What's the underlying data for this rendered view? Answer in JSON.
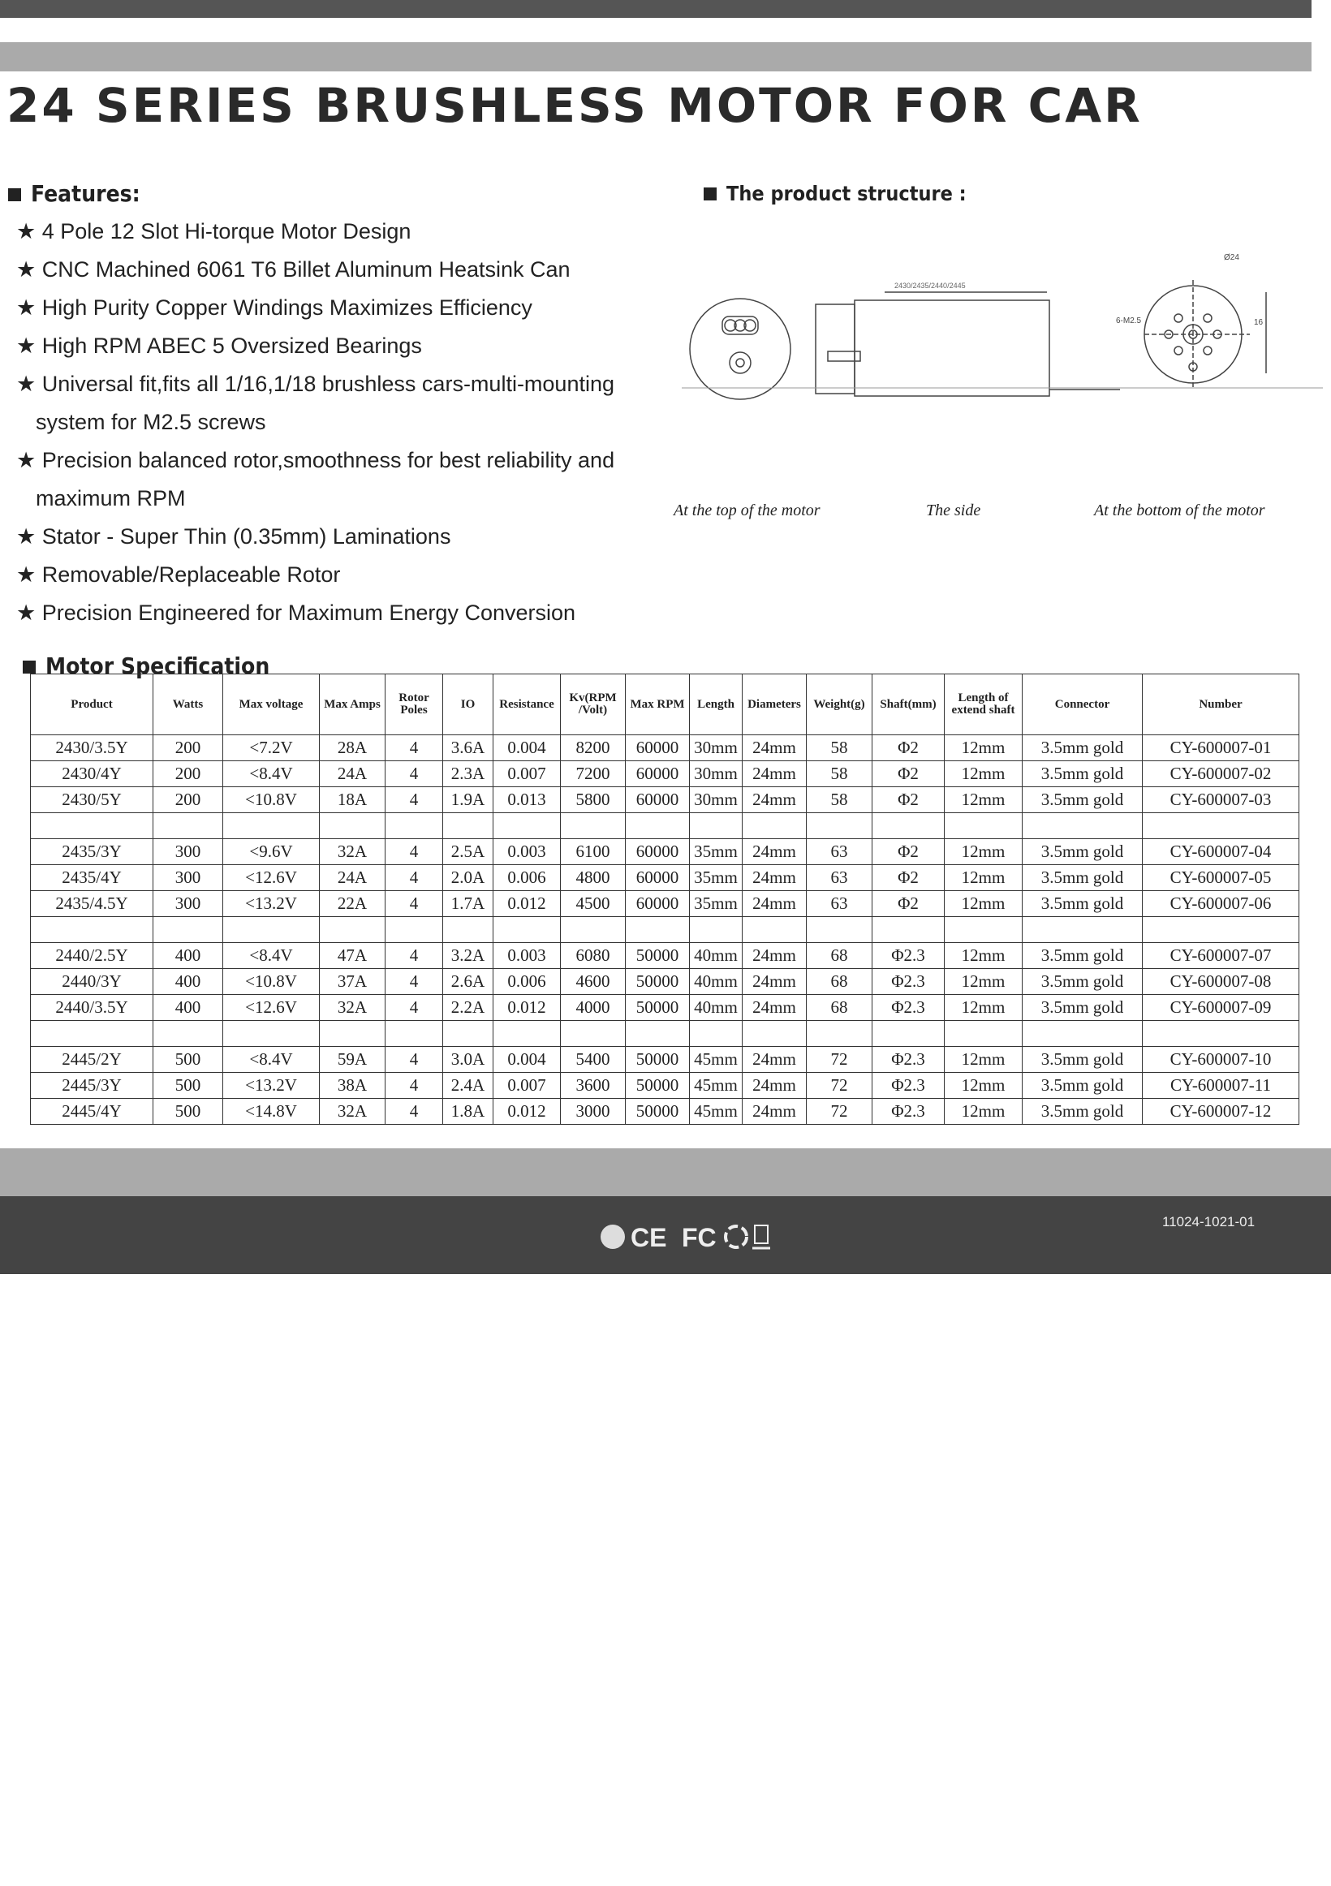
{
  "header": {
    "title": "24 SERIES BRUSHLESS MOTOR FOR CAR"
  },
  "features": {
    "heading": "Features:",
    "items": [
      "4 Pole 12 Slot Hi-torque Motor Design",
      "CNC Machined 6061 T6 Billet Aluminum Heatsink Can",
      "High Purity Copper Windings Maximizes Efficiency",
      "High RPM ABEC 5 Oversized Bearings",
      "Universal fit,fits all 1/16,1/18 brushless cars-multi-mounting system for M2.5 screws",
      "Precision balanced rotor,smoothness for best reliability and maximum RPM",
      "Stator - Super Thin (0.35mm) Laminations",
      "Removable/Replaceable Rotor",
      "Precision Engineered for Maximum Energy Conversion"
    ]
  },
  "structure": {
    "heading": "The product structure :",
    "dimension_labels": [
      "2430/2435/2440/2445",
      "6-M2.5",
      "16",
      "Ø24"
    ],
    "captions": [
      "At the top of the motor",
      "The side",
      "At the bottom of the motor"
    ]
  },
  "table": {
    "heading": "Motor Specification",
    "columns": [
      "Product",
      "Watts",
      "Max voltage",
      "Max Amps",
      "Rotor Poles",
      "IO",
      "Resistance",
      "Kv(RPM /Volt)",
      "Max RPM",
      "Length",
      "Diameters",
      "Weight(g)",
      "Shaft(mm)",
      "Length of extend shaft",
      "Connector",
      "Number"
    ],
    "groups": [
      [
        [
          "2430/3.5Y",
          "200",
          "<7.2V",
          "28A",
          "4",
          "3.6A",
          "0.004",
          "8200",
          "60000",
          "30mm",
          "24mm",
          "58",
          "Φ2",
          "12mm",
          "3.5mm gold",
          "CY-600007-01"
        ],
        [
          "2430/4Y",
          "200",
          "<8.4V",
          "24A",
          "4",
          "2.3A",
          "0.007",
          "7200",
          "60000",
          "30mm",
          "24mm",
          "58",
          "Φ2",
          "12mm",
          "3.5mm gold",
          "CY-600007-02"
        ],
        [
          "2430/5Y",
          "200",
          "<10.8V",
          "18A",
          "4",
          "1.9A",
          "0.013",
          "5800",
          "60000",
          "30mm",
          "24mm",
          "58",
          "Φ2",
          "12mm",
          "3.5mm gold",
          "CY-600007-03"
        ]
      ],
      [
        [
          "2435/3Y",
          "300",
          "<9.6V",
          "32A",
          "4",
          "2.5A",
          "0.003",
          "6100",
          "60000",
          "35mm",
          "24mm",
          "63",
          "Φ2",
          "12mm",
          "3.5mm gold",
          "CY-600007-04"
        ],
        [
          "2435/4Y",
          "300",
          "<12.6V",
          "24A",
          "4",
          "2.0A",
          "0.006",
          "4800",
          "60000",
          "35mm",
          "24mm",
          "63",
          "Φ2",
          "12mm",
          "3.5mm gold",
          "CY-600007-05"
        ],
        [
          "2435/4.5Y",
          "300",
          "<13.2V",
          "22A",
          "4",
          "1.7A",
          "0.012",
          "4500",
          "60000",
          "35mm",
          "24mm",
          "63",
          "Φ2",
          "12mm",
          "3.5mm gold",
          "CY-600007-06"
        ]
      ],
      [
        [
          "2440/2.5Y",
          "400",
          "<8.4V",
          "47A",
          "4",
          "3.2A",
          "0.003",
          "6080",
          "50000",
          "40mm",
          "24mm",
          "68",
          "Φ2.3",
          "12mm",
          "3.5mm gold",
          "CY-600007-07"
        ],
        [
          "2440/3Y",
          "400",
          "<10.8V",
          "37A",
          "4",
          "2.6A",
          "0.006",
          "4600",
          "50000",
          "40mm",
          "24mm",
          "68",
          "Φ2.3",
          "12mm",
          "3.5mm gold",
          "CY-600007-08"
        ],
        [
          "2440/3.5Y",
          "400",
          "<12.6V",
          "32A",
          "4",
          "2.2A",
          "0.012",
          "4000",
          "50000",
          "40mm",
          "24mm",
          "68",
          "Φ2.3",
          "12mm",
          "3.5mm gold",
          "CY-600007-09"
        ]
      ],
      [
        [
          "2445/2Y",
          "500",
          "<8.4V",
          "59A",
          "4",
          "3.0A",
          "0.004",
          "5400",
          "50000",
          "45mm",
          "24mm",
          "72",
          "Φ2.3",
          "12mm",
          "3.5mm gold",
          "CY-600007-10"
        ],
        [
          "2445/3Y",
          "500",
          "<13.2V",
          "38A",
          "4",
          "2.4A",
          "0.007",
          "3600",
          "50000",
          "45mm",
          "24mm",
          "72",
          "Φ2.3",
          "12mm",
          "3.5mm gold",
          "CY-600007-11"
        ],
        [
          "2445/4Y",
          "500",
          "<14.8V",
          "32A",
          "4",
          "1.8A",
          "0.012",
          "3000",
          "50000",
          "45mm",
          "24mm",
          "72",
          "Φ2.3",
          "12mm",
          "3.5mm gold",
          "CY-600007-12"
        ]
      ]
    ]
  },
  "footer": {
    "marks": [
      "CE",
      "FC"
    ],
    "code": "11024-1021-01"
  }
}
